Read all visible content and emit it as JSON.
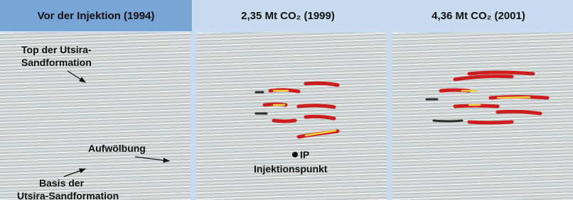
{
  "panels": [
    {
      "title": "Vor der Injektion (1994)",
      "annotations": {
        "top": [
          "Top der Utsira-",
          "Sandformation"
        ],
        "bulge": "Aufwölbung",
        "base": [
          "Basis der",
          "Utsira-Sandformation"
        ]
      }
    },
    {
      "title": "2,35 Mt CO₂ (1999)",
      "annotations": {
        "point": "IP",
        "point_label": "Injektionspunkt"
      }
    },
    {
      "title": "4,36 Mt CO₂ (2001)"
    }
  ]
}
